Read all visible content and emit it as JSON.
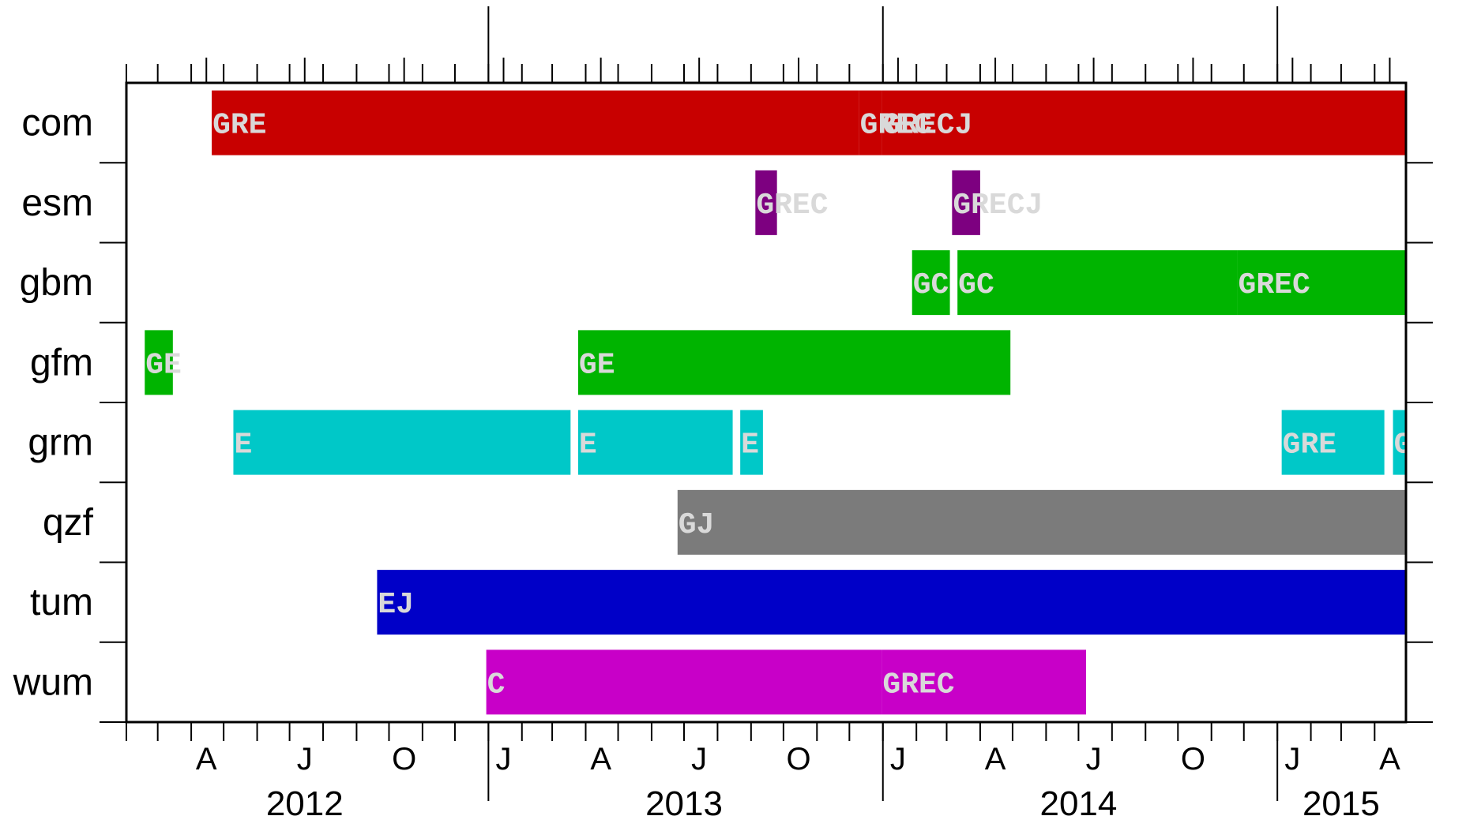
{
  "chart_data": {
    "type": "gantt",
    "rows": [
      "com",
      "esm",
      "gbm",
      "gfm",
      "grm",
      "qzf",
      "tum",
      "wum"
    ],
    "x_range": [
      "2012-02-01",
      "2015-04-30"
    ],
    "month_labels": [
      {
        "date": "2012-04-15",
        "label": "A"
      },
      {
        "date": "2012-07-15",
        "label": "J"
      },
      {
        "date": "2012-10-15",
        "label": "O"
      },
      {
        "date": "2013-01-15",
        "label": "J"
      },
      {
        "date": "2013-04-15",
        "label": "A"
      },
      {
        "date": "2013-07-15",
        "label": "J"
      },
      {
        "date": "2013-10-15",
        "label": "O"
      },
      {
        "date": "2014-01-15",
        "label": "J"
      },
      {
        "date": "2014-04-15",
        "label": "A"
      },
      {
        "date": "2014-07-15",
        "label": "J"
      },
      {
        "date": "2014-10-15",
        "label": "O"
      },
      {
        "date": "2015-01-15",
        "label": "J"
      },
      {
        "date": "2015-04-15",
        "label": "A"
      }
    ],
    "year_labels": [
      {
        "center": "2012-07-15",
        "label": "2012"
      },
      {
        "center": "2013-07-01",
        "label": "2013"
      },
      {
        "center": "2014-07-01",
        "label": "2014"
      },
      {
        "center": "2015-03-01",
        "label": "2015"
      }
    ],
    "year_boundaries": [
      "2013-01-01",
      "2014-01-01",
      "2015-01-01"
    ],
    "bars": [
      {
        "row": "com",
        "start": "2012-04-20",
        "end": "2013-12-10",
        "label": "GRE",
        "color": "#c80000"
      },
      {
        "row": "com",
        "start": "2013-12-10",
        "end": "2013-12-31",
        "label": "GREC",
        "color": "#c80000"
      },
      {
        "row": "com",
        "start": "2013-12-31",
        "end": "2015-04-30",
        "label": "GRECJ",
        "color": "#c80000"
      },
      {
        "row": "esm",
        "start": "2013-09-05",
        "end": "2013-09-25",
        "label": "GREC",
        "color": "#7d0080"
      },
      {
        "row": "esm",
        "start": "2014-03-06",
        "end": "2014-04-01",
        "label": "GRECJ",
        "color": "#7d0080"
      },
      {
        "row": "gbm",
        "start": "2014-01-28",
        "end": "2014-03-04",
        "label": "GC",
        "color": "#00b400"
      },
      {
        "row": "gbm",
        "start": "2014-03-11",
        "end": "2014-11-25",
        "label": "GC",
        "color": "#00b400"
      },
      {
        "row": "gbm",
        "start": "2014-11-25",
        "end": "2015-04-30",
        "label": "GREC",
        "color": "#00b400"
      },
      {
        "row": "gfm",
        "start": "2012-02-18",
        "end": "2012-03-15",
        "label": "GE",
        "color": "#00b400"
      },
      {
        "row": "gfm",
        "start": "2013-03-25",
        "end": "2014-04-29",
        "label": "GE",
        "color": "#00b400"
      },
      {
        "row": "grm",
        "start": "2012-05-10",
        "end": "2013-03-18",
        "label": "E",
        "color": "#00c8c8"
      },
      {
        "row": "grm",
        "start": "2013-03-25",
        "end": "2013-08-15",
        "label": "E",
        "color": "#00c8c8"
      },
      {
        "row": "grm",
        "start": "2013-08-22",
        "end": "2013-09-12",
        "label": "E",
        "color": "#00c8c8"
      },
      {
        "row": "grm",
        "start": "2015-01-05",
        "end": "2015-04-10",
        "label": "GRE",
        "color": "#00c8c8"
      },
      {
        "row": "grm",
        "start": "2015-04-18",
        "end": "2015-04-30",
        "label": "G",
        "color": "#00c8c8"
      },
      {
        "row": "qzf",
        "start": "2013-06-25",
        "end": "2015-04-30",
        "label": "GJ",
        "color": "#7b7b7b"
      },
      {
        "row": "tum",
        "start": "2012-09-20",
        "end": "2015-04-30",
        "label": "EJ",
        "color": "#0000c8"
      },
      {
        "row": "wum",
        "start": "2012-12-30",
        "end": "2013-12-31",
        "label": "C",
        "color": "#c800c8"
      },
      {
        "row": "wum",
        "start": "2013-12-31",
        "end": "2014-07-08",
        "label": "GREC",
        "color": "#c800c8"
      }
    ]
  }
}
